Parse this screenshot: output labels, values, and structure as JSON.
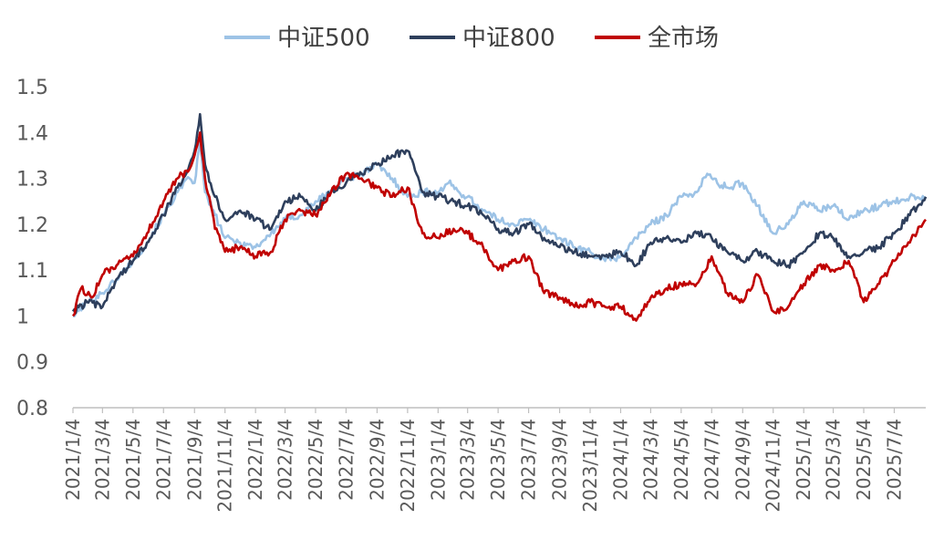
{
  "chart_data": {
    "type": "line",
    "title": "",
    "xlabel": "",
    "ylabel": "",
    "ylim": [
      0.8,
      1.5
    ],
    "yticks": [
      "0.8",
      "0.9",
      "1",
      "1.1",
      "1.2",
      "1.3",
      "1.4",
      "1.5"
    ],
    "xticks": [
      "2021/1/4",
      "2021/3/4",
      "2021/5/4",
      "2021/7/4",
      "2021/9/4",
      "2021/11/4",
      "2022/1/4",
      "2022/3/4",
      "2022/5/4",
      "2022/7/4",
      "2022/9/4",
      "2022/11/4",
      "2023/1/4",
      "2023/3/4",
      "2023/5/4",
      "2023/7/4",
      "2023/9/4",
      "2023/11/4",
      "2024/1/4",
      "2024/3/4",
      "2024/5/4",
      "2024/7/4",
      "2024/9/4",
      "2024/11/4",
      "2025/1/4",
      "2025/3/4",
      "2025/5/4",
      "2025/7/4"
    ],
    "grid": false,
    "legend_position": "top-center",
    "x_range": [
      "2021/1/4",
      "2025/9/5"
    ],
    "series": [
      {
        "name": "中证500",
        "color": "#9dc3e6",
        "points": [
          [
            "2021/1/4",
            1.0
          ],
          [
            "2021/2/1",
            1.03
          ],
          [
            "2021/3/4",
            1.05
          ],
          [
            "2021/4/1",
            1.08
          ],
          [
            "2021/5/4",
            1.12
          ],
          [
            "2021/6/1",
            1.16
          ],
          [
            "2021/7/4",
            1.22
          ],
          [
            "2021/8/1",
            1.27
          ],
          [
            "2021/8/25",
            1.3
          ],
          [
            "2021/9/4",
            1.29
          ],
          [
            "2021/9/15",
            1.38
          ],
          [
            "2021/9/25",
            1.27
          ],
          [
            "2021/10/15",
            1.22
          ],
          [
            "2021/11/4",
            1.17
          ],
          [
            "2021/12/4",
            1.16
          ],
          [
            "2022/1/4",
            1.15
          ],
          [
            "2022/2/4",
            1.18
          ],
          [
            "2022/3/4",
            1.21
          ],
          [
            "2022/4/4",
            1.22
          ],
          [
            "2022/5/4",
            1.25
          ],
          [
            "2022/6/4",
            1.27
          ],
          [
            "2022/7/4",
            1.3
          ],
          [
            "2022/8/4",
            1.31
          ],
          [
            "2022/9/4",
            1.33
          ],
          [
            "2022/10/4",
            1.3
          ],
          [
            "2022/11/4",
            1.26
          ],
          [
            "2022/12/4",
            1.27
          ],
          [
            "2023/1/4",
            1.27
          ],
          [
            "2023/1/25",
            1.29
          ],
          [
            "2023/2/15",
            1.27
          ],
          [
            "2023/3/4",
            1.26
          ],
          [
            "2023/4/4",
            1.23
          ],
          [
            "2023/5/4",
            1.21
          ],
          [
            "2023/6/4",
            1.2
          ],
          [
            "2023/7/4",
            1.21
          ],
          [
            "2023/8/4",
            1.19
          ],
          [
            "2023/9/4",
            1.17
          ],
          [
            "2023/10/4",
            1.15
          ],
          [
            "2023/11/4",
            1.14
          ],
          [
            "2023/12/4",
            1.12
          ],
          [
            "2024/1/4",
            1.13
          ],
          [
            "2024/2/4",
            1.17
          ],
          [
            "2024/3/4",
            1.2
          ],
          [
            "2024/4/4",
            1.22
          ],
          [
            "2024/5/4",
            1.26
          ],
          [
            "2024/6/4",
            1.27
          ],
          [
            "2024/6/25",
            1.31
          ],
          [
            "2024/7/15",
            1.29
          ],
          [
            "2024/8/4",
            1.28
          ],
          [
            "2024/9/4",
            1.29
          ],
          [
            "2024/10/4",
            1.24
          ],
          [
            "2024/11/4",
            1.18
          ],
          [
            "2024/12/4",
            1.2
          ],
          [
            "2025/1/4",
            1.25
          ],
          [
            "2025/2/4",
            1.23
          ],
          [
            "2025/3/4",
            1.24
          ],
          [
            "2025/4/4",
            1.21
          ],
          [
            "2025/5/4",
            1.23
          ],
          [
            "2025/6/4",
            1.24
          ],
          [
            "2025/7/4",
            1.25
          ],
          [
            "2025/8/4",
            1.26
          ],
          [
            "2025/9/5",
            1.26
          ]
        ]
      },
      {
        "name": "中证800",
        "color": "#2e3f5c",
        "points": [
          [
            "2021/1/4",
            1.01
          ],
          [
            "2021/2/1",
            1.03
          ],
          [
            "2021/3/4",
            1.02
          ],
          [
            "2021/4/1",
            1.08
          ],
          [
            "2021/5/4",
            1.12
          ],
          [
            "2021/6/1",
            1.16
          ],
          [
            "2021/7/4",
            1.22
          ],
          [
            "2021/8/1",
            1.28
          ],
          [
            "2021/8/25",
            1.33
          ],
          [
            "2021/9/4",
            1.36
          ],
          [
            "2021/9/15",
            1.44
          ],
          [
            "2021/9/25",
            1.33
          ],
          [
            "2021/10/15",
            1.26
          ],
          [
            "2021/11/4",
            1.21
          ],
          [
            "2021/12/4",
            1.23
          ],
          [
            "2022/1/4",
            1.21
          ],
          [
            "2022/2/4",
            1.19
          ],
          [
            "2022/3/4",
            1.25
          ],
          [
            "2022/4/4",
            1.26
          ],
          [
            "2022/5/4",
            1.23
          ],
          [
            "2022/6/4",
            1.27
          ],
          [
            "2022/7/4",
            1.29
          ],
          [
            "2022/8/4",
            1.31
          ],
          [
            "2022/9/4",
            1.33
          ],
          [
            "2022/10/4",
            1.35
          ],
          [
            "2022/11/4",
            1.36
          ],
          [
            "2022/12/4",
            1.27
          ],
          [
            "2023/1/4",
            1.26
          ],
          [
            "2023/2/4",
            1.25
          ],
          [
            "2023/3/4",
            1.24
          ],
          [
            "2023/4/4",
            1.22
          ],
          [
            "2023/5/4",
            1.19
          ],
          [
            "2023/6/4",
            1.18
          ],
          [
            "2023/7/4",
            1.2
          ],
          [
            "2023/8/4",
            1.17
          ],
          [
            "2023/9/4",
            1.15
          ],
          [
            "2023/10/4",
            1.14
          ],
          [
            "2023/11/4",
            1.13
          ],
          [
            "2023/12/4",
            1.13
          ],
          [
            "2024/1/4",
            1.14
          ],
          [
            "2024/2/4",
            1.11
          ],
          [
            "2024/3/4",
            1.16
          ],
          [
            "2024/4/4",
            1.17
          ],
          [
            "2024/5/4",
            1.16
          ],
          [
            "2024/6/4",
            1.18
          ],
          [
            "2024/7/4",
            1.17
          ],
          [
            "2024/8/4",
            1.14
          ],
          [
            "2024/9/4",
            1.12
          ],
          [
            "2024/10/4",
            1.14
          ],
          [
            "2024/11/4",
            1.12
          ],
          [
            "2024/12/4",
            1.11
          ],
          [
            "2025/1/4",
            1.14
          ],
          [
            "2025/2/4",
            1.18
          ],
          [
            "2025/3/4",
            1.17
          ],
          [
            "2025/4/4",
            1.13
          ],
          [
            "2025/5/4",
            1.14
          ],
          [
            "2025/6/4",
            1.15
          ],
          [
            "2025/7/4",
            1.18
          ],
          [
            "2025/8/4",
            1.22
          ],
          [
            "2025/9/5",
            1.26
          ]
        ]
      },
      {
        "name": "全市场",
        "color": "#c00000",
        "points": [
          [
            "2021/1/4",
            1.0
          ],
          [
            "2021/1/20",
            1.06
          ],
          [
            "2021/2/10",
            1.04
          ],
          [
            "2021/3/4",
            1.09
          ],
          [
            "2021/4/1",
            1.11
          ],
          [
            "2021/5/4",
            1.13
          ],
          [
            "2021/6/1",
            1.18
          ],
          [
            "2021/7/4",
            1.25
          ],
          [
            "2021/8/1",
            1.3
          ],
          [
            "2021/8/25",
            1.32
          ],
          [
            "2021/9/4",
            1.35
          ],
          [
            "2021/9/15",
            1.4
          ],
          [
            "2021/9/25",
            1.3
          ],
          [
            "2021/10/15",
            1.19
          ],
          [
            "2021/11/4",
            1.14
          ],
          [
            "2021/12/4",
            1.15
          ],
          [
            "2022/1/4",
            1.13
          ],
          [
            "2022/2/4",
            1.14
          ],
          [
            "2022/3/4",
            1.21
          ],
          [
            "2022/4/4",
            1.23
          ],
          [
            "2022/5/4",
            1.22
          ],
          [
            "2022/6/4",
            1.27
          ],
          [
            "2022/7/4",
            1.31
          ],
          [
            "2022/8/4",
            1.3
          ],
          [
            "2022/9/4",
            1.28
          ],
          [
            "2022/10/4",
            1.26
          ],
          [
            "2022/11/4",
            1.28
          ],
          [
            "2022/12/4",
            1.18
          ],
          [
            "2023/1/4",
            1.17
          ],
          [
            "2023/2/4",
            1.19
          ],
          [
            "2023/3/4",
            1.18
          ],
          [
            "2023/4/4",
            1.15
          ],
          [
            "2023/5/4",
            1.1
          ],
          [
            "2023/6/4",
            1.12
          ],
          [
            "2023/7/4",
            1.13
          ],
          [
            "2023/8/4",
            1.05
          ],
          [
            "2023/9/4",
            1.04
          ],
          [
            "2023/10/4",
            1.02
          ],
          [
            "2023/11/4",
            1.03
          ],
          [
            "2023/12/4",
            1.02
          ],
          [
            "2024/1/4",
            1.02
          ],
          [
            "2024/2/4",
            0.99
          ],
          [
            "2024/3/4",
            1.04
          ],
          [
            "2024/4/4",
            1.06
          ],
          [
            "2024/5/4",
            1.07
          ],
          [
            "2024/6/4",
            1.07
          ],
          [
            "2024/7/4",
            1.13
          ],
          [
            "2024/8/4",
            1.05
          ],
          [
            "2024/9/4",
            1.03
          ],
          [
            "2024/10/4",
            1.09
          ],
          [
            "2024/11/4",
            1.01
          ],
          [
            "2024/12/4",
            1.02
          ],
          [
            "2025/1/4",
            1.07
          ],
          [
            "2025/2/4",
            1.11
          ],
          [
            "2025/3/4",
            1.1
          ],
          [
            "2025/4/4",
            1.12
          ],
          [
            "2025/5/4",
            1.03
          ],
          [
            "2025/6/4",
            1.07
          ],
          [
            "2025/7/4",
            1.12
          ],
          [
            "2025/8/4",
            1.16
          ],
          [
            "2025/9/5",
            1.21
          ]
        ]
      }
    ]
  }
}
